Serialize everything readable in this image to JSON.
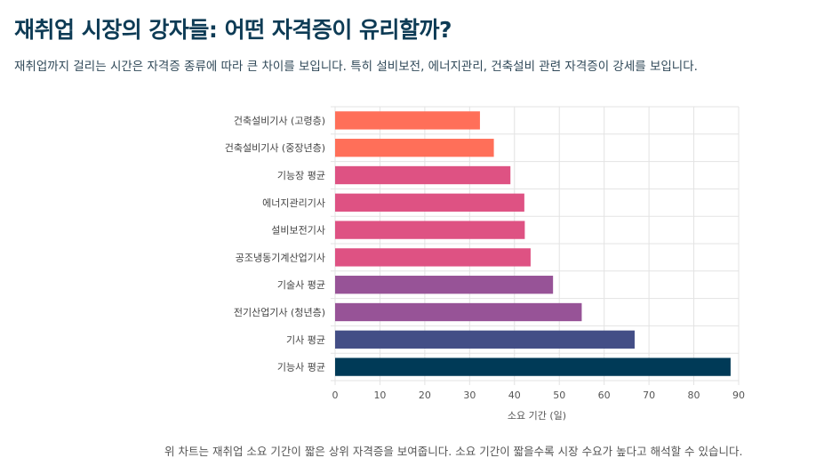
{
  "header": {
    "title": "재취업 시장의 강자들: 어떤 자격증이 유리할까?",
    "subtitle": "재취업까지 걸리는 시간은 자격증 종류에 따라 큰 차이를 보입니다. 특히 설비보전, 에너지관리, 건축설비 관련 자격증이 강세를 보입니다."
  },
  "footnote": "위 차트는 재취업 소요 기간이 짧은 상위 자격증을 보여줍니다. 소요 기간이 짧을수록 시장 수요가 높다고 해석할 수 있습니다.",
  "chart_data": {
    "type": "bar",
    "orientation": "horizontal",
    "categories": [
      "건축설비기사 (고령층)",
      "건축설비기사 (중장년층)",
      "기능장 평균",
      "에너지관리기사",
      "설비보전기사",
      "공조냉동기계산업기사",
      "기술사 평균",
      "전기산업기사 (청년층)",
      "기사 평균",
      "기능사 평균"
    ],
    "values": [
      32.3,
      35.4,
      39.1,
      42.2,
      42.3,
      43.6,
      48.6,
      55.0,
      66.8,
      88.2
    ],
    "colors": [
      "#ff6f59",
      "#ff6f59",
      "#de5283",
      "#de5283",
      "#de5283",
      "#de5283",
      "#975397",
      "#975397",
      "#434e86",
      "#003a57"
    ],
    "xlabel": "소요 기간 (일)",
    "ylabel": "",
    "xlim": [
      0,
      90
    ],
    "xticks": [
      0,
      10,
      20,
      30,
      40,
      50,
      60,
      70,
      80,
      90
    ],
    "grid": true
  }
}
